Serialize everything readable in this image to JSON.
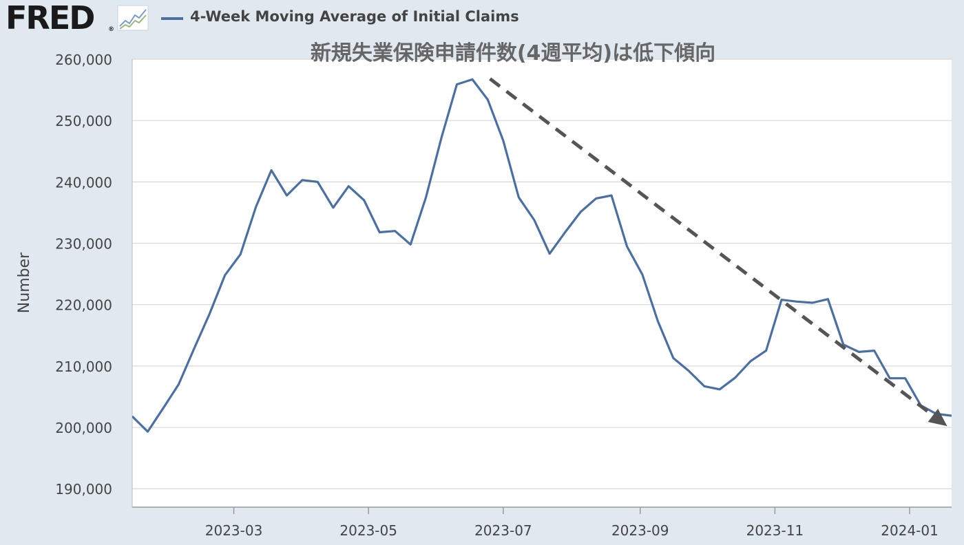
{
  "header": {
    "logo_text": "FRED",
    "logo_reg": "®",
    "legend_label": "4-Week Moving Average of Initial Claims",
    "series_color": "#4a6fa3"
  },
  "chart_data": {
    "type": "line",
    "title": "新規失業保険申請件数(4週平均)は低下傾向",
    "ylabel": "Number",
    "xlabel": "",
    "ylim": [
      187000,
      260000
    ],
    "yticks": [
      190000,
      200000,
      210000,
      220000,
      230000,
      240000,
      250000,
      260000
    ],
    "ytick_labels": [
      "190,000",
      "200,000",
      "210,000",
      "220,000",
      "230,000",
      "240,000",
      "250,000",
      "260,000"
    ],
    "xlim": [
      "2023-01-14",
      "2024-01-20"
    ],
    "xticks": [
      "2023-03-01",
      "2023-05-01",
      "2023-07-01",
      "2023-09-01",
      "2023-11-01",
      "2024-01-01"
    ],
    "xtick_labels": [
      "2023-03",
      "2023-05",
      "2023-07",
      "2023-09",
      "2023-11",
      "2024-01"
    ],
    "grid": true,
    "series": [
      {
        "color": "#4a6fa3",
        "x": [
          "2023-01-14",
          "2023-01-21",
          "2023-01-28",
          "2023-02-04",
          "2023-02-11",
          "2023-02-18",
          "2023-02-25",
          "2023-03-04",
          "2023-03-11",
          "2023-03-18",
          "2023-03-25",
          "2023-04-01",
          "2023-04-08",
          "2023-04-15",
          "2023-04-22",
          "2023-04-29",
          "2023-05-06",
          "2023-05-13",
          "2023-05-20",
          "2023-05-27",
          "2023-06-03",
          "2023-06-10",
          "2023-06-17",
          "2023-06-24",
          "2023-07-01",
          "2023-07-08",
          "2023-07-15",
          "2023-07-22",
          "2023-07-29",
          "2023-08-05",
          "2023-08-12",
          "2023-08-19",
          "2023-08-26",
          "2023-09-02",
          "2023-09-09",
          "2023-09-16",
          "2023-09-23",
          "2023-09-30",
          "2023-10-07",
          "2023-10-14",
          "2023-10-21",
          "2023-10-28",
          "2023-11-04",
          "2023-11-11",
          "2023-11-18",
          "2023-11-25",
          "2023-12-02",
          "2023-12-09",
          "2023-12-16",
          "2023-12-23",
          "2023-12-30",
          "2024-01-06",
          "2024-01-13",
          "2024-01-20"
        ],
        "values": [
          201800,
          199300,
          203100,
          207000,
          212800,
          218500,
          224800,
          228200,
          235900,
          241900,
          237800,
          240300,
          240000,
          235800,
          239300,
          237000,
          231800,
          232000,
          229800,
          237500,
          247200,
          255900,
          256700,
          253400,
          246700,
          237500,
          233800,
          228300,
          231800,
          235100,
          237300,
          237800,
          229500,
          224900,
          217300,
          211300,
          209200,
          206700,
          206200,
          208100,
          210800,
          212500,
          220800,
          220500,
          220300,
          220900,
          213500,
          212300,
          212500,
          208000,
          208000,
          203600,
          202200,
          201900
        ]
      }
    ],
    "trend_arrow": {
      "from": [
        "2023-06-25",
        256800
      ],
      "to": [
        "2024-01-18",
        200200
      ],
      "color": "#555555"
    }
  }
}
